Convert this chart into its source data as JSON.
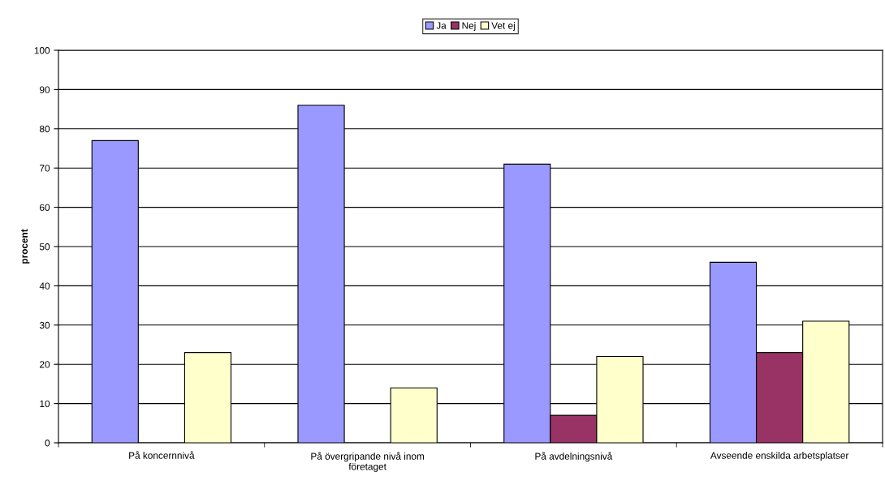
{
  "chart_data": {
    "type": "bar",
    "ylabel": "procent",
    "categories": [
      "På koncernnivå",
      "På övergripande nivå inom\nföretaget",
      "På avdelningsnivå",
      "Avseende enskilda arbetsplatser"
    ],
    "series": [
      {
        "name": "Ja",
        "color": "#9999ff",
        "values": [
          77,
          86,
          71,
          46
        ]
      },
      {
        "name": "Nej",
        "color": "#993366",
        "values": [
          null,
          null,
          7,
          23
        ]
      },
      {
        "name": "Vet ej",
        "color": "#ffffcc",
        "values": [
          23,
          14,
          22,
          31
        ]
      }
    ],
    "ylim": [
      0,
      100
    ],
    "yticks": [
      0,
      10,
      20,
      30,
      40,
      50,
      60,
      70,
      80,
      90,
      100
    ],
    "grid": "y",
    "legend": "top"
  }
}
